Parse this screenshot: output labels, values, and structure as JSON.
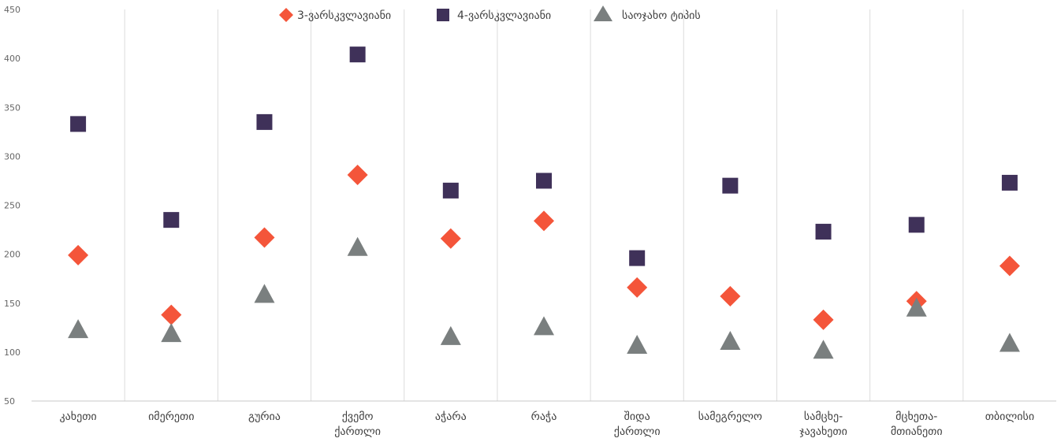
{
  "chart_data": {
    "type": "scatter",
    "categories": [
      "კახეთი",
      "იმერეთი",
      "გურია",
      "ქვემო\nქართლი",
      "აჭარა",
      "რაჭა",
      "შიდა\nქართლი",
      "სამეგრელო",
      "სამცხე-\nჯავახეთი",
      "მცხეთა-\nმთიანეთი",
      "თბილისი"
    ],
    "series": [
      {
        "name": "3-ვარსკვლავიანი",
        "marker": "diamond",
        "color": "#f4553a",
        "values": [
          199,
          138,
          217,
          281,
          216,
          234,
          166,
          157,
          133,
          152,
          188
        ]
      },
      {
        "name": "4-ვარსკვლავიანი",
        "marker": "square",
        "color": "#3f3159",
        "values": [
          333,
          235,
          335,
          404,
          265,
          275,
          196,
          270,
          223,
          230,
          273
        ]
      },
      {
        "name": "საოჯახო ტიპის",
        "marker": "triangle",
        "color": "#7a7f7f",
        "values": [
          122,
          118,
          158,
          206,
          115,
          125,
          106,
          110,
          101,
          144,
          108
        ]
      }
    ],
    "ylim": [
      50,
      450
    ],
    "yticks": [
      "50",
      "100",
      "150",
      "200",
      "250",
      "300",
      "350",
      "400",
      "450"
    ],
    "legend_position": "top-center",
    "grid": "vertical-separators",
    "title": "",
    "xlabel": "",
    "ylabel": ""
  }
}
